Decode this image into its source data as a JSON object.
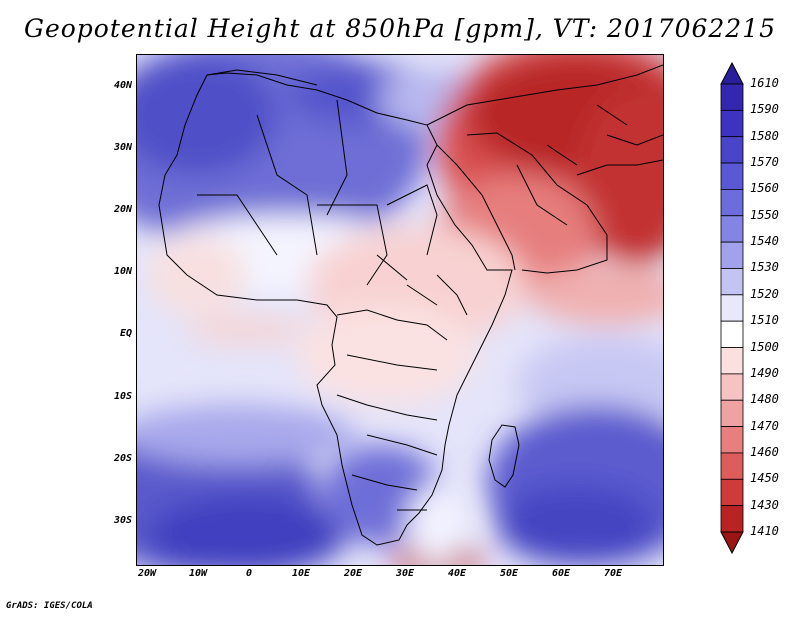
{
  "title": "Geopotential Height at 850hPa [gpm], VT: 2017062215",
  "footer": "GrADS: IGES/COLA",
  "map": {
    "latitude_labels": [
      "40N",
      "30N",
      "20N",
      "10N",
      "EQ",
      "10S",
      "20S",
      "30S"
    ],
    "longitude_labels": [
      "20W",
      "10W",
      "0",
      "10E",
      "20E",
      "30E",
      "40E",
      "50E",
      "60E",
      "70E"
    ]
  },
  "colorbar": {
    "labels": [
      "1610",
      "1590",
      "1580",
      "1570",
      "1560",
      "1550",
      "1540",
      "1530",
      "1520",
      "1510",
      "1500",
      "1490",
      "1480",
      "1470",
      "1460",
      "1450",
      "1430",
      "1410"
    ],
    "colors": [
      "#2a1f9b",
      "#3326b0",
      "#3d33c0",
      "#4a44cb",
      "#5a58d4",
      "#6c6cdc",
      "#8484e4",
      "#a2a2ec",
      "#c4c4f4",
      "#e8e8fb",
      "#ffffff",
      "#fbe0e0",
      "#f6c2c2",
      "#efa2a2",
      "#e77f7f",
      "#dd5c5c",
      "#cf3a3a",
      "#b92323",
      "#9c1515"
    ]
  }
}
